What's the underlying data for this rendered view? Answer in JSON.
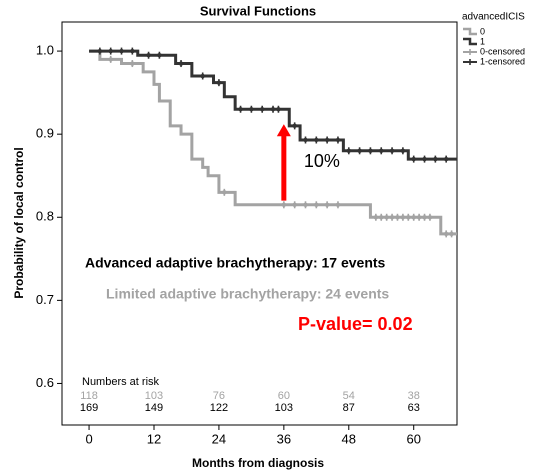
{
  "chart_data": {
    "type": "step",
    "title": "Survival Functions",
    "x_label": "Months from diagnosis",
    "y_label": "Probability of local control",
    "xlim": [
      -5,
      68
    ],
    "ylim": [
      0.55,
      1.035
    ],
    "xticks": [
      0,
      12,
      24,
      36,
      48,
      60
    ],
    "yticks": [
      0.6,
      0.7,
      0.8,
      0.9,
      {
        "value": 1,
        "label": "1.0"
      }
    ],
    "legend_title": "advancedICIS",
    "legend_position": "right",
    "series": [
      {
        "name": "0",
        "color": "#a3a3a3",
        "x": [
          0,
          2,
          6,
          10,
          12,
          13,
          15,
          17,
          19,
          21,
          22,
          24,
          27,
          52,
          65,
          68
        ],
        "values": [
          1,
          0.99,
          0.985,
          0.975,
          0.96,
          0.94,
          0.91,
          0.9,
          0.87,
          0.86,
          0.85,
          0.83,
          0.815,
          0.8,
          0.78,
          0.78
        ]
      },
      {
        "name": "1",
        "color": "#333333",
        "x": [
          0,
          9,
          16,
          19,
          23,
          25,
          27,
          37,
          39,
          47,
          59,
          68
        ],
        "values": [
          1,
          0.995,
          0.985,
          0.97,
          0.962,
          0.945,
          0.93,
          0.91,
          0.893,
          0.88,
          0.87,
          0.87
        ]
      },
      {
        "name": "0-censored",
        "color": "#a3a3a3",
        "censored": true,
        "x": [
          4,
          8,
          25,
          36,
          38,
          40,
          42,
          44,
          46,
          53,
          54,
          55,
          56,
          57,
          58,
          59,
          60,
          61,
          62,
          63,
          66,
          67
        ],
        "values": [
          0.99,
          0.985,
          0.83,
          0.815,
          0.815,
          0.815,
          0.815,
          0.815,
          0.815,
          0.8,
          0.8,
          0.8,
          0.8,
          0.8,
          0.8,
          0.8,
          0.8,
          0.8,
          0.8,
          0.8,
          0.78,
          0.78
        ]
      },
      {
        "name": "1-censored",
        "color": "#333333",
        "censored": true,
        "x": [
          2,
          4,
          6,
          8,
          11,
          13,
          17,
          21,
          24,
          28,
          30,
          32,
          34,
          35,
          38,
          40,
          42,
          44,
          46,
          48,
          50,
          52,
          54,
          56,
          58,
          60,
          62,
          64,
          66
        ],
        "values": [
          1,
          1,
          1,
          1,
          0.995,
          0.995,
          0.985,
          0.97,
          0.962,
          0.93,
          0.93,
          0.93,
          0.93,
          0.93,
          0.91,
          0.893,
          0.893,
          0.893,
          0.893,
          0.88,
          0.88,
          0.88,
          0.88,
          0.88,
          0.88,
          0.87,
          0.87,
          0.87,
          0.87
        ]
      }
    ],
    "arrow": {
      "x": 36,
      "y0": 0.82,
      "y1": 0.912,
      "color": "#ff0000",
      "label": "10%"
    },
    "annotations": [
      {
        "text": "Advanced adaptive brachytherapy: 17 events",
        "color": "#000000"
      },
      {
        "text": "Limited adaptive brachytherapy: 24 events",
        "color": "#a3a3a3"
      },
      {
        "text": "P-value= 0.02",
        "color": "#ff0000"
      }
    ],
    "at_risk": {
      "label": "Numbers at risk",
      "rows": [
        {
          "color": "#a3a3a3",
          "values": [
            118,
            103,
            76,
            60,
            54,
            38
          ]
        },
        {
          "color": "#000000",
          "values": [
            169,
            149,
            122,
            103,
            87,
            63
          ]
        }
      ]
    }
  }
}
